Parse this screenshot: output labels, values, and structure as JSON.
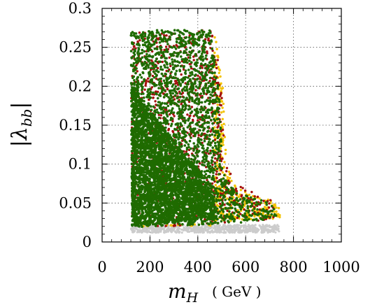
{
  "chart_data": {
    "type": "scatter",
    "title": "",
    "xlabel": "m_H",
    "xunit": "( GeV )",
    "ylabel": "|λ_bb|",
    "xlim": [
      0,
      1000
    ],
    "ylim": [
      0,
      0.3
    ],
    "xticks": [
      "0",
      "200",
      "400",
      "600",
      "800",
      "1000"
    ],
    "yticks": [
      "0",
      "0.05",
      "0.1",
      "0.15",
      "0.2",
      "0.25",
      "0.3"
    ],
    "grid": true,
    "colors": {
      "gray": "#cccccc",
      "yellow": "#f2c200",
      "red": "#a50f0f",
      "green": "#1f6b00"
    },
    "regions": {
      "gray": [
        [
          120,
          0.012
        ],
        [
          740,
          0.012
        ],
        [
          740,
          0.022
        ],
        [
          120,
          0.022
        ]
      ],
      "yellow": [
        [
          125,
          0.02
        ],
        [
          465,
          0.02
        ],
        [
          470,
          0.272
        ],
        [
          505,
          0.2
        ],
        [
          520,
          0.1
        ],
        [
          560,
          0.07
        ],
        [
          700,
          0.055
        ],
        [
          745,
          0.045
        ],
        [
          745,
          0.03
        ],
        [
          125,
          0.02
        ]
      ],
      "red": [
        [
          125,
          0.018
        ],
        [
          120,
          0.272
        ],
        [
          465,
          0.272
        ],
        [
          500,
          0.2
        ],
        [
          515,
          0.11
        ],
        [
          550,
          0.075
        ],
        [
          700,
          0.055
        ],
        [
          740,
          0.045
        ],
        [
          740,
          0.03
        ],
        [
          600,
          0.025
        ],
        [
          125,
          0.018
        ]
      ],
      "green": [
        [
          125,
          0.018
        ],
        [
          120,
          0.272
        ],
        [
          455,
          0.272
        ],
        [
          490,
          0.19
        ],
        [
          505,
          0.11
        ],
        [
          520,
          0.08
        ],
        [
          560,
          0.065
        ],
        [
          700,
          0.05
        ],
        [
          735,
          0.04
        ],
        [
          730,
          0.03
        ],
        [
          600,
          0.025
        ],
        [
          125,
          0.018
        ]
      ]
    }
  }
}
